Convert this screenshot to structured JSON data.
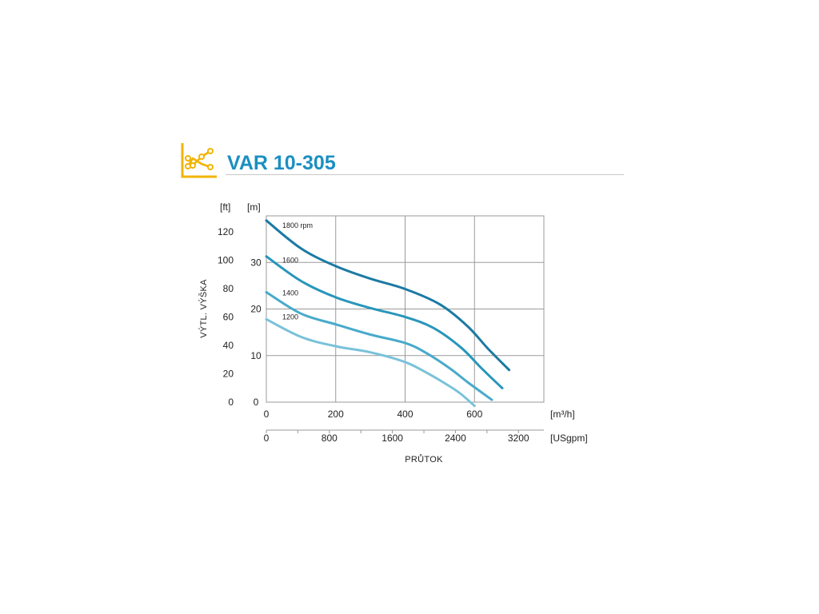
{
  "title": "VAR 10-305",
  "icon": "chart-line-icon",
  "colors": {
    "title": "#1a8fc1",
    "icon": "#f2b400",
    "grid": "#9a9a9a",
    "series": [
      "#1b7aa3",
      "#2796bb",
      "#48aacb",
      "#79c2da"
    ]
  },
  "chart_data": {
    "type": "line",
    "xlabel": "PRŮTOK",
    "ylabel": "VÝTL. VÝŠKA",
    "x_unit": "[m³/h]",
    "x2_unit": "[USgpm]",
    "y_unit": "[m]",
    "y2_unit": "[ft]",
    "xlim": [
      0,
      800
    ],
    "ylim": [
      0,
      40
    ],
    "x_ticks": [
      0,
      200,
      400,
      600
    ],
    "x2_ticks": [
      0,
      800,
      1600,
      2400,
      3200
    ],
    "y_ticks": [
      0,
      10,
      20,
      30
    ],
    "y2_ticks": [
      0,
      20,
      40,
      60,
      80,
      100,
      120
    ],
    "grid": true,
    "series": [
      {
        "name": "1800 rpm",
        "points": [
          [
            0,
            39
          ],
          [
            100,
            33
          ],
          [
            200,
            29.2
          ],
          [
            300,
            26.5
          ],
          [
            400,
            24.3
          ],
          [
            500,
            21
          ],
          [
            580,
            16.3
          ],
          [
            640,
            11.4
          ],
          [
            700,
            6.9
          ]
        ]
      },
      {
        "name": "1600",
        "points": [
          [
            0,
            31.3
          ],
          [
            100,
            26
          ],
          [
            200,
            22.5
          ],
          [
            300,
            20.2
          ],
          [
            400,
            18.3
          ],
          [
            480,
            16
          ],
          [
            560,
            11.8
          ],
          [
            620,
            7.3
          ],
          [
            680,
            3
          ]
        ]
      },
      {
        "name": "1400",
        "points": [
          [
            0,
            23.6
          ],
          [
            100,
            19
          ],
          [
            200,
            16.7
          ],
          [
            300,
            14.5
          ],
          [
            400,
            12.7
          ],
          [
            460,
            10.6
          ],
          [
            530,
            7.2
          ],
          [
            580,
            4.3
          ],
          [
            650,
            0.5
          ]
        ]
      },
      {
        "name": "1200",
        "points": [
          [
            0,
            17.8
          ],
          [
            100,
            14
          ],
          [
            200,
            12
          ],
          [
            300,
            10.7
          ],
          [
            400,
            8.6
          ],
          [
            460,
            6.4
          ],
          [
            520,
            3.8
          ],
          [
            560,
            1.8
          ],
          [
            600,
            -0.8
          ]
        ]
      }
    ]
  }
}
